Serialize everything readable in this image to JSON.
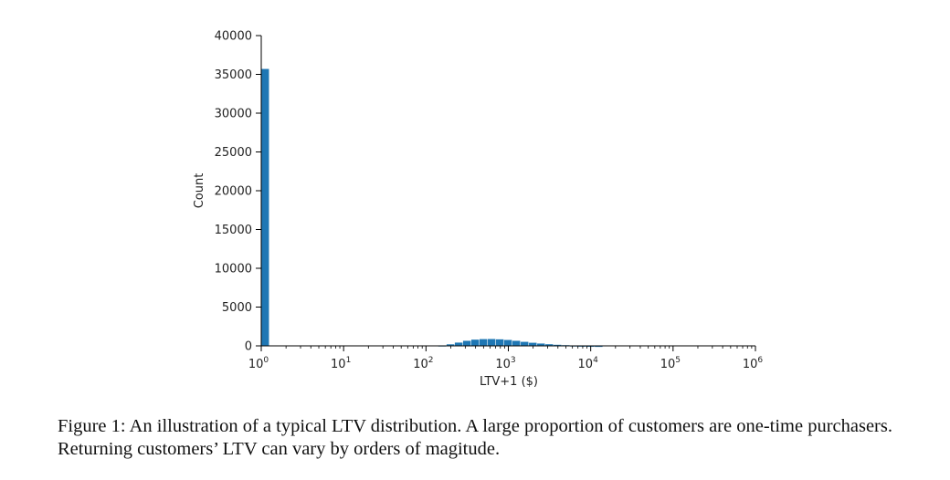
{
  "chart_data": {
    "type": "bar",
    "xlabel": "LTV+1 ($)",
    "ylabel": "Count",
    "x_scale": "log",
    "xlim": [
      1,
      1000000
    ],
    "ylim": [
      0,
      40000
    ],
    "y_ticks": [
      0,
      5000,
      10000,
      15000,
      20000,
      25000,
      30000,
      35000,
      40000
    ],
    "x_ticks": [
      {
        "base": "10",
        "exp": "0"
      },
      {
        "base": "10",
        "exp": "1"
      },
      {
        "base": "10",
        "exp": "2"
      },
      {
        "base": "10",
        "exp": "3"
      },
      {
        "base": "10",
        "exp": "4"
      },
      {
        "base": "10",
        "exp": "5"
      },
      {
        "base": "10",
        "exp": "6"
      }
    ],
    "bar_color": "#1f77b4",
    "grid": false,
    "bins": [
      {
        "x0": 1,
        "x1": 1.26,
        "count": 35700
      },
      {
        "x0": 141,
        "x1": 178,
        "count": 60
      },
      {
        "x0": 178,
        "x1": 224,
        "count": 200
      },
      {
        "x0": 224,
        "x1": 282,
        "count": 420
      },
      {
        "x0": 282,
        "x1": 355,
        "count": 650
      },
      {
        "x0": 355,
        "x1": 447,
        "count": 800
      },
      {
        "x0": 447,
        "x1": 562,
        "count": 870
      },
      {
        "x0": 562,
        "x1": 708,
        "count": 880
      },
      {
        "x0": 708,
        "x1": 891,
        "count": 840
      },
      {
        "x0": 891,
        "x1": 1122,
        "count": 760
      },
      {
        "x0": 1122,
        "x1": 1413,
        "count": 650
      },
      {
        "x0": 1413,
        "x1": 1778,
        "count": 520
      },
      {
        "x0": 1778,
        "x1": 2239,
        "count": 400
      },
      {
        "x0": 2239,
        "x1": 2818,
        "count": 300
      },
      {
        "x0": 2818,
        "x1": 3548,
        "count": 210
      },
      {
        "x0": 3548,
        "x1": 4467,
        "count": 140
      },
      {
        "x0": 4467,
        "x1": 5623,
        "count": 90
      },
      {
        "x0": 5623,
        "x1": 7079,
        "count": 55
      },
      {
        "x0": 7079,
        "x1": 8913,
        "count": 35
      },
      {
        "x0": 8913,
        "x1": 11220,
        "count": 20
      },
      {
        "x0": 11220,
        "x1": 14125,
        "count": 10
      }
    ]
  },
  "caption": {
    "text": "Figure 1: An illustration of a typical LTV distribution. A large proportion of customers are one-time purchasers. Returning customers’ LTV can vary by orders of magitude."
  }
}
